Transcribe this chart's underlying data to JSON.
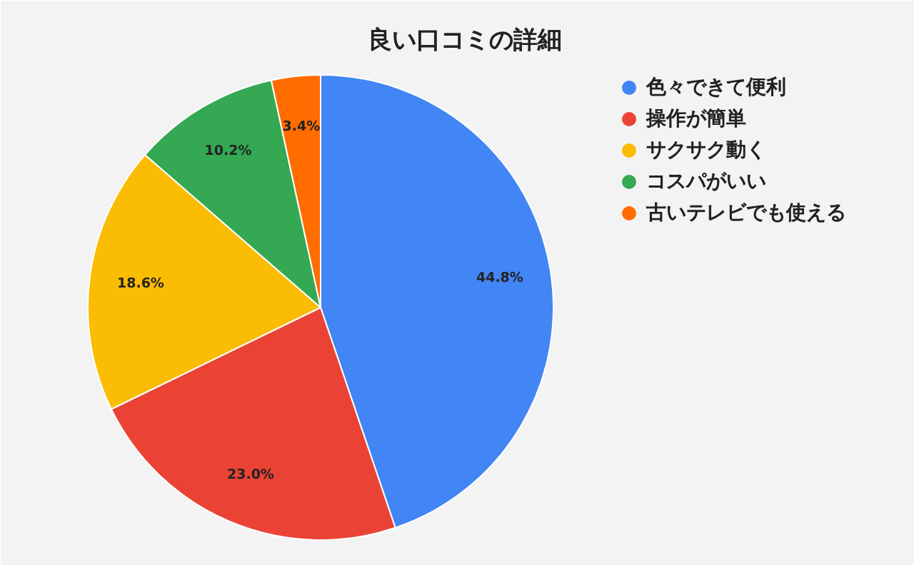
{
  "chart_data": {
    "type": "pie",
    "title": "良い口コミの詳細",
    "categories": [
      "色々できて便利",
      "操作が簡単",
      "サクサク動く",
      "コスパがいい",
      "古いテレビでも使える"
    ],
    "values": [
      44.8,
      23.0,
      18.6,
      10.2,
      3.4
    ],
    "value_labels": [
      "44.8%",
      "23.0%",
      "18.6%",
      "10.2%",
      "3.4%"
    ],
    "colors": [
      "#4285f4",
      "#ea4335",
      "#fbbc04",
      "#34a853",
      "#ff6d01"
    ],
    "legend": "right"
  }
}
